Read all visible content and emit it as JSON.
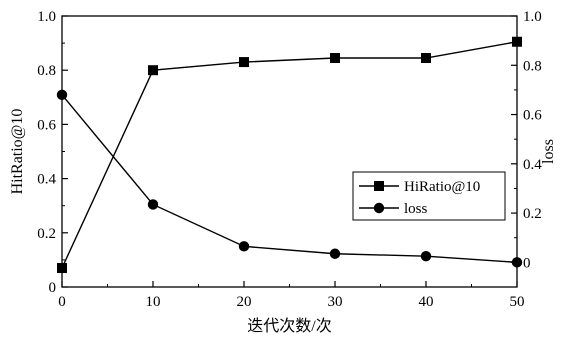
{
  "chart_data": {
    "type": "line",
    "title": "",
    "x": [
      0,
      10,
      20,
      30,
      40,
      50
    ],
    "xlabel": "迭代次数/次",
    "xlim": [
      0,
      50
    ],
    "xticks": [
      "0",
      "10",
      "20",
      "30",
      "40",
      "50"
    ],
    "y_left": {
      "label": "HitRatio@10",
      "lim": [
        0,
        1.0
      ],
      "ticks": [
        "0",
        "0.2",
        "0.4",
        "0.6",
        "0.8",
        "1.0"
      ]
    },
    "y_right": {
      "label": "loss",
      "lim": [
        -0.1,
        1.0
      ],
      "ticks": [
        "0",
        "0.2",
        "0.4",
        "0.6",
        "0.8",
        "1.0"
      ]
    },
    "grid": false,
    "legend_position": "center-right",
    "series": [
      {
        "name": "HiRatio@10",
        "axis": "left",
        "marker": "square",
        "values": [
          0.07,
          0.8,
          0.83,
          0.845,
          0.845,
          0.905
        ]
      },
      {
        "name": "loss",
        "axis": "right",
        "marker": "circle",
        "values": [
          0.68,
          0.235,
          0.065,
          0.035,
          0.025,
          0.0
        ]
      }
    ]
  }
}
